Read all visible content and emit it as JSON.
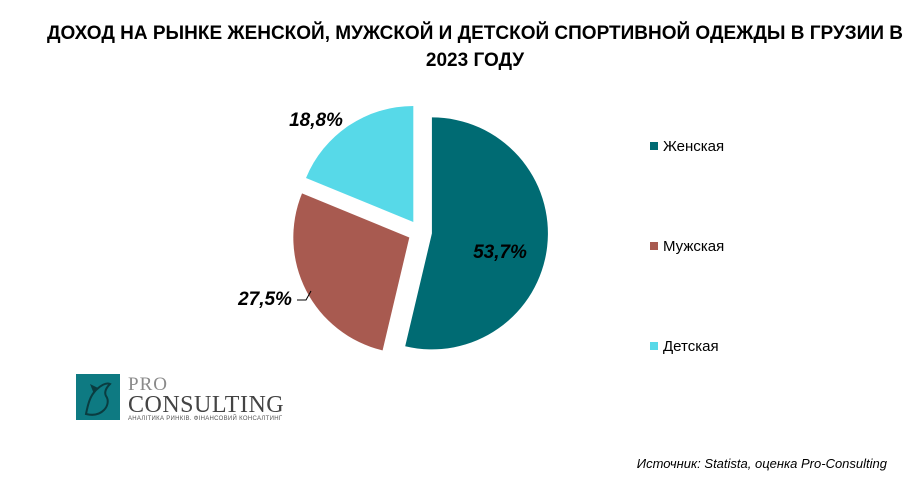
{
  "title": "ДОХОД НА РЫНКЕ ЖЕНСКОЙ, МУЖСКОЙ И ДЕТСКОЙ СПОРТИВНОЙ ОДЕЖДЫ В ГРУЗИИ В 2023 ГОДУ",
  "source": "Источник: Statista, оценка Pro-Consulting",
  "logo": {
    "pro": "PRO",
    "consulting": "CONSULTING",
    "tagline": "АНАЛІТИКА РИНКІВ. ФІНАНСОВИЙ КОНСАЛТИНГ"
  },
  "chart_data": {
    "type": "pie",
    "title": "ДОХОД НА РЫНКЕ ЖЕНСКОЙ, МУЖСКОЙ И ДЕТСКОЙ СПОРТИВНОЙ ОДЕЖДЫ В ГРУЗИИ В 2023 ГОДУ",
    "categories": [
      "Женская",
      "Мужская",
      "Детская"
    ],
    "values": [
      53.7,
      27.5,
      18.8
    ],
    "labels": [
      "53,7%",
      "27,5%",
      "18,8%"
    ],
    "colors": [
      "#006b73",
      "#a85a50",
      "#57d9e8"
    ],
    "legend_position": "right",
    "exploded": true
  }
}
